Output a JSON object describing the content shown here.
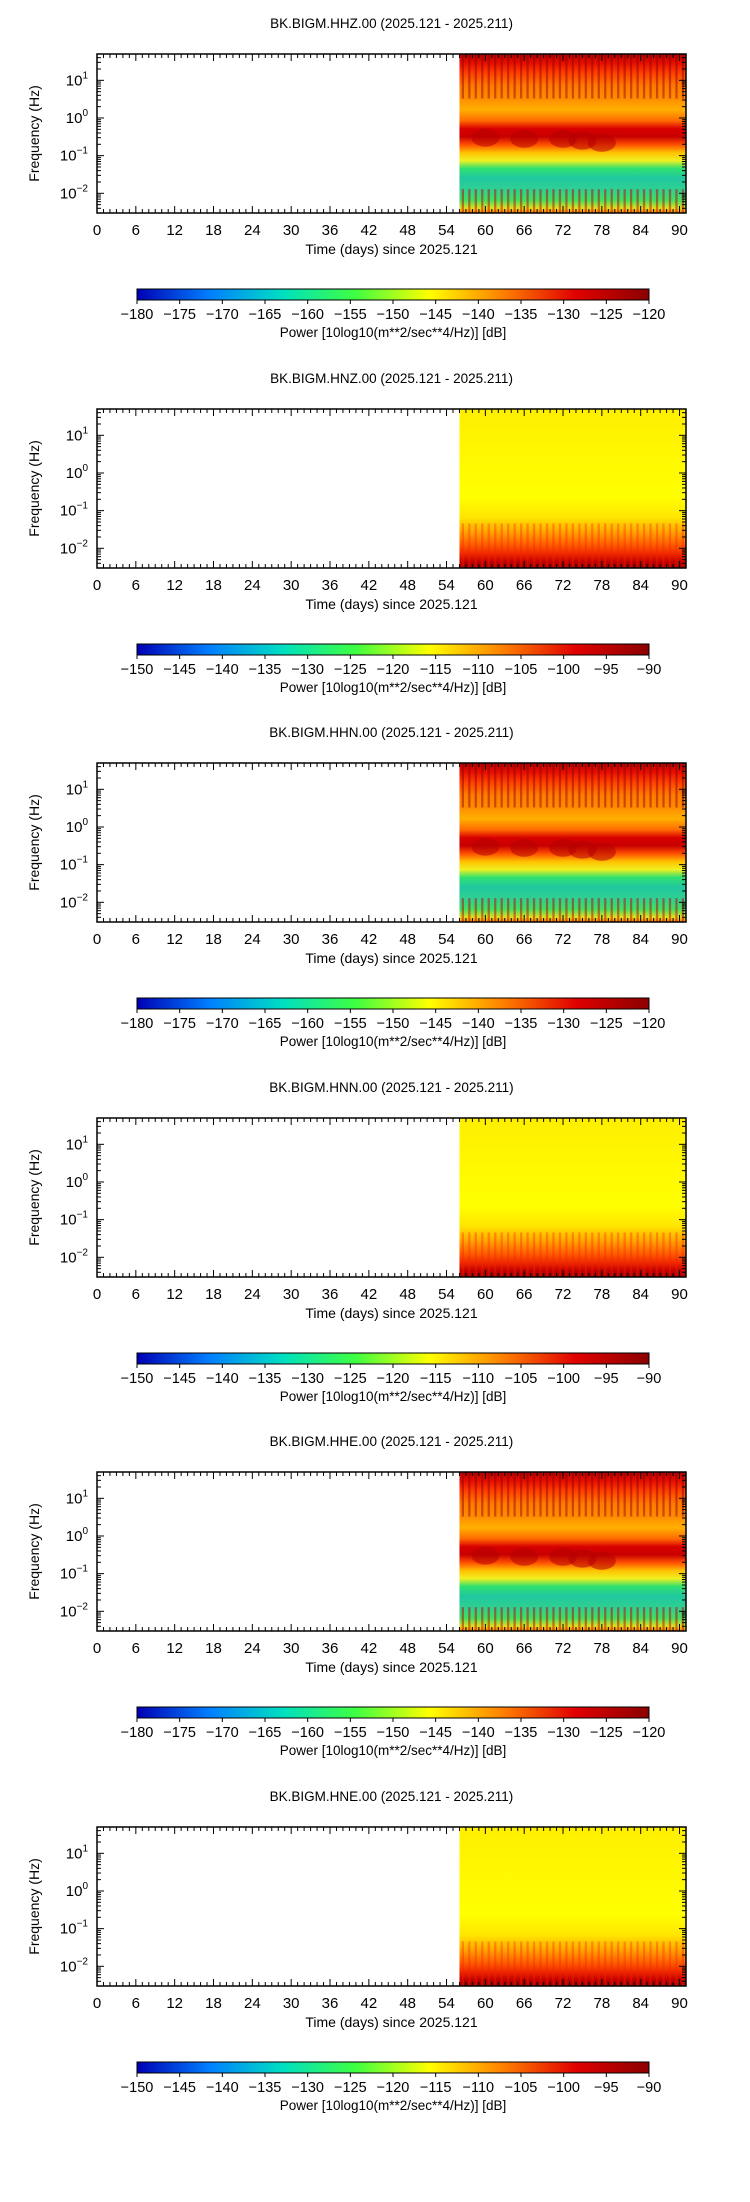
{
  "figure": {
    "panels": [
      {
        "title": "BK.BIGM.HHZ.00 (2025.121 - 2025.211)",
        "profile": "seis",
        "colorbar": {
          "ticks": [
            "−180",
            "−175",
            "−170",
            "−165",
            "−160",
            "−155",
            "−150",
            "−145",
            "−140",
            "−135",
            "−130",
            "−125",
            "−120"
          ],
          "label": "Power [10log10(m**2/sec**4/Hz)] [dB]"
        }
      },
      {
        "title": "BK.BIGM.HNZ.00 (2025.121 - 2025.211)",
        "profile": "strong",
        "colorbar": {
          "ticks": [
            "−150",
            "−145",
            "−140",
            "−135",
            "−130",
            "−125",
            "−120",
            "−115",
            "−110",
            "−105",
            "−100",
            "−95",
            "−90"
          ],
          "label": "Power [10log10(m**2/sec**4/Hz)] [dB]"
        }
      },
      {
        "title": "BK.BIGM.HHN.00 (2025.121 - 2025.211)",
        "profile": "seis",
        "colorbar": {
          "ticks": [
            "−180",
            "−175",
            "−170",
            "−165",
            "−160",
            "−155",
            "−150",
            "−145",
            "−140",
            "−135",
            "−130",
            "−125",
            "−120"
          ],
          "label": "Power [10log10(m**2/sec**4/Hz)] [dB]"
        }
      },
      {
        "title": "BK.BIGM.HNN.00 (2025.121 - 2025.211)",
        "profile": "strong",
        "colorbar": {
          "ticks": [
            "−150",
            "−145",
            "−140",
            "−135",
            "−130",
            "−125",
            "−120",
            "−115",
            "−110",
            "−105",
            "−100",
            "−95",
            "−90"
          ],
          "label": "Power [10log10(m**2/sec**4/Hz)] [dB]"
        }
      },
      {
        "title": "BK.BIGM.HHE.00 (2025.121 - 2025.211)",
        "profile": "seis",
        "colorbar": {
          "ticks": [
            "−180",
            "−175",
            "−170",
            "−165",
            "−160",
            "−155",
            "−150",
            "−145",
            "−140",
            "−135",
            "−130",
            "−125",
            "−120"
          ],
          "label": "Power [10log10(m**2/sec**4/Hz)] [dB]"
        }
      },
      {
        "title": "BK.BIGM.HNE.00 (2025.121 - 2025.211)",
        "profile": "strong",
        "colorbar": {
          "ticks": [
            "−150",
            "−145",
            "−140",
            "−135",
            "−130",
            "−125",
            "−120",
            "−115",
            "−110",
            "−105",
            "−100",
            "−95",
            "−90"
          ],
          "label": "Power [10log10(m**2/sec**4/Hz)] [dB]"
        }
      }
    ]
  },
  "chart_data": {
    "type": "heatmap",
    "xlabel": "Time (days) since 2025.121",
    "ylabel": "Frequency (Hz)",
    "x_ticks": [
      "0",
      "6",
      "12",
      "18",
      "24",
      "30",
      "36",
      "42",
      "48",
      "54",
      "60",
      "66",
      "72",
      "78",
      "84",
      "90"
    ],
    "xlim": [
      0,
      91
    ],
    "y_scale": "log",
    "y_ticks": [
      "10^-2",
      "10^-1",
      "10^0",
      "10^1"
    ],
    "ylim": [
      0.003,
      50
    ],
    "data_start_day": 56,
    "colormap": [
      "#0000b4",
      "#0080ff",
      "#00e0c0",
      "#40ff40",
      "#ffff00",
      "#ff8000",
      "#e00000",
      "#8b0000"
    ],
    "panels": [
      {
        "channel": "HHZ",
        "clim": [
          -180,
          -120
        ],
        "unit": "dB"
      },
      {
        "channel": "HNZ",
        "clim": [
          -150,
          -90
        ],
        "unit": "dB"
      },
      {
        "channel": "HHN",
        "clim": [
          -180,
          -120
        ],
        "unit": "dB"
      },
      {
        "channel": "HNN",
        "clim": [
          -150,
          -90
        ],
        "unit": "dB"
      },
      {
        "channel": "HHE",
        "clim": [
          -180,
          -120
        ],
        "unit": "dB"
      },
      {
        "channel": "HNE",
        "clim": [
          -150,
          -90
        ],
        "unit": "dB"
      }
    ]
  }
}
